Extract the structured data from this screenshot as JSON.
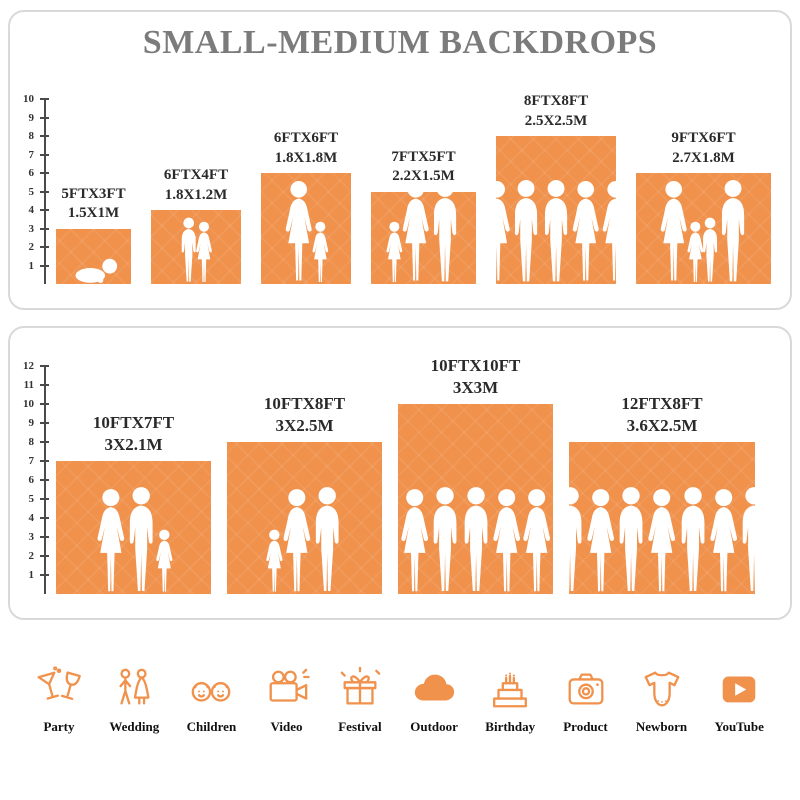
{
  "title": "SMALL-MEDIUM BACKDROPS",
  "accent_color": "#F0914C",
  "panels": [
    {
      "axis_max": 10,
      "backdrops": [
        {
          "size_ft": "5FTX3FT",
          "size_m": "1.5X1M",
          "width_ft": 5,
          "height_ft": 3,
          "figures": [
            "baby"
          ]
        },
        {
          "size_ft": "6FTX4FT",
          "size_m": "1.8X1.2M",
          "width_ft": 6,
          "height_ft": 4,
          "figures": [
            "child-m",
            "child-f"
          ]
        },
        {
          "size_ft": "6FTX6FT",
          "size_m": "1.8X1.8M",
          "width_ft": 6,
          "height_ft": 6,
          "figures": [
            "adult-f",
            "child-f"
          ]
        },
        {
          "size_ft": "7FTX5FT",
          "size_m": "2.2X1.5M",
          "width_ft": 7,
          "height_ft": 5,
          "figures": [
            "child-f",
            "adult-f",
            "adult-m"
          ]
        },
        {
          "size_ft": "8FTX8FT",
          "size_m": "2.5X2.5M",
          "width_ft": 8,
          "height_ft": 8,
          "figures": [
            "adult-f",
            "adult-m",
            "adult-m",
            "adult-f",
            "adult-f"
          ]
        },
        {
          "size_ft": "9FTX6FT",
          "size_m": "2.7X1.8M",
          "width_ft": 9,
          "height_ft": 6,
          "figures": [
            "adult-f",
            "child-f",
            "child-m",
            "adult-m"
          ]
        }
      ]
    },
    {
      "axis_max": 12,
      "backdrops": [
        {
          "size_ft": "10FTX7FT",
          "size_m": "3X2.1M",
          "width_ft": 10,
          "height_ft": 7,
          "figures": [
            "adult-f",
            "adult-m",
            "child-f"
          ]
        },
        {
          "size_ft": "10FTX8FT",
          "size_m": "3X2.5M",
          "width_ft": 10,
          "height_ft": 8,
          "figures": [
            "child-f",
            "adult-f",
            "adult-m"
          ]
        },
        {
          "size_ft": "10FTX10FT",
          "size_m": "3X3M",
          "width_ft": 10,
          "height_ft": 10,
          "figures": [
            "adult-f",
            "adult-m",
            "adult-m",
            "adult-f",
            "adult-f"
          ]
        },
        {
          "size_ft": "12FTX8FT",
          "size_m": "3.6X2.5M",
          "width_ft": 12,
          "height_ft": 8,
          "figures": [
            "adult-m",
            "adult-f",
            "adult-m",
            "adult-f",
            "adult-m",
            "adult-f",
            "adult-m"
          ]
        }
      ]
    }
  ],
  "categories": [
    {
      "label": "Party",
      "icon": "party-icon"
    },
    {
      "label": "Wedding",
      "icon": "wedding-icon"
    },
    {
      "label": "Children",
      "icon": "children-icon"
    },
    {
      "label": "Video",
      "icon": "video-icon"
    },
    {
      "label": "Festival",
      "icon": "festival-icon"
    },
    {
      "label": "Outdoor",
      "icon": "outdoor-icon"
    },
    {
      "label": "Birthday",
      "icon": "birthday-icon"
    },
    {
      "label": "Product",
      "icon": "product-icon"
    },
    {
      "label": "Newborn",
      "icon": "newborn-icon"
    },
    {
      "label": "YouTube",
      "icon": "youtube-icon"
    }
  ]
}
